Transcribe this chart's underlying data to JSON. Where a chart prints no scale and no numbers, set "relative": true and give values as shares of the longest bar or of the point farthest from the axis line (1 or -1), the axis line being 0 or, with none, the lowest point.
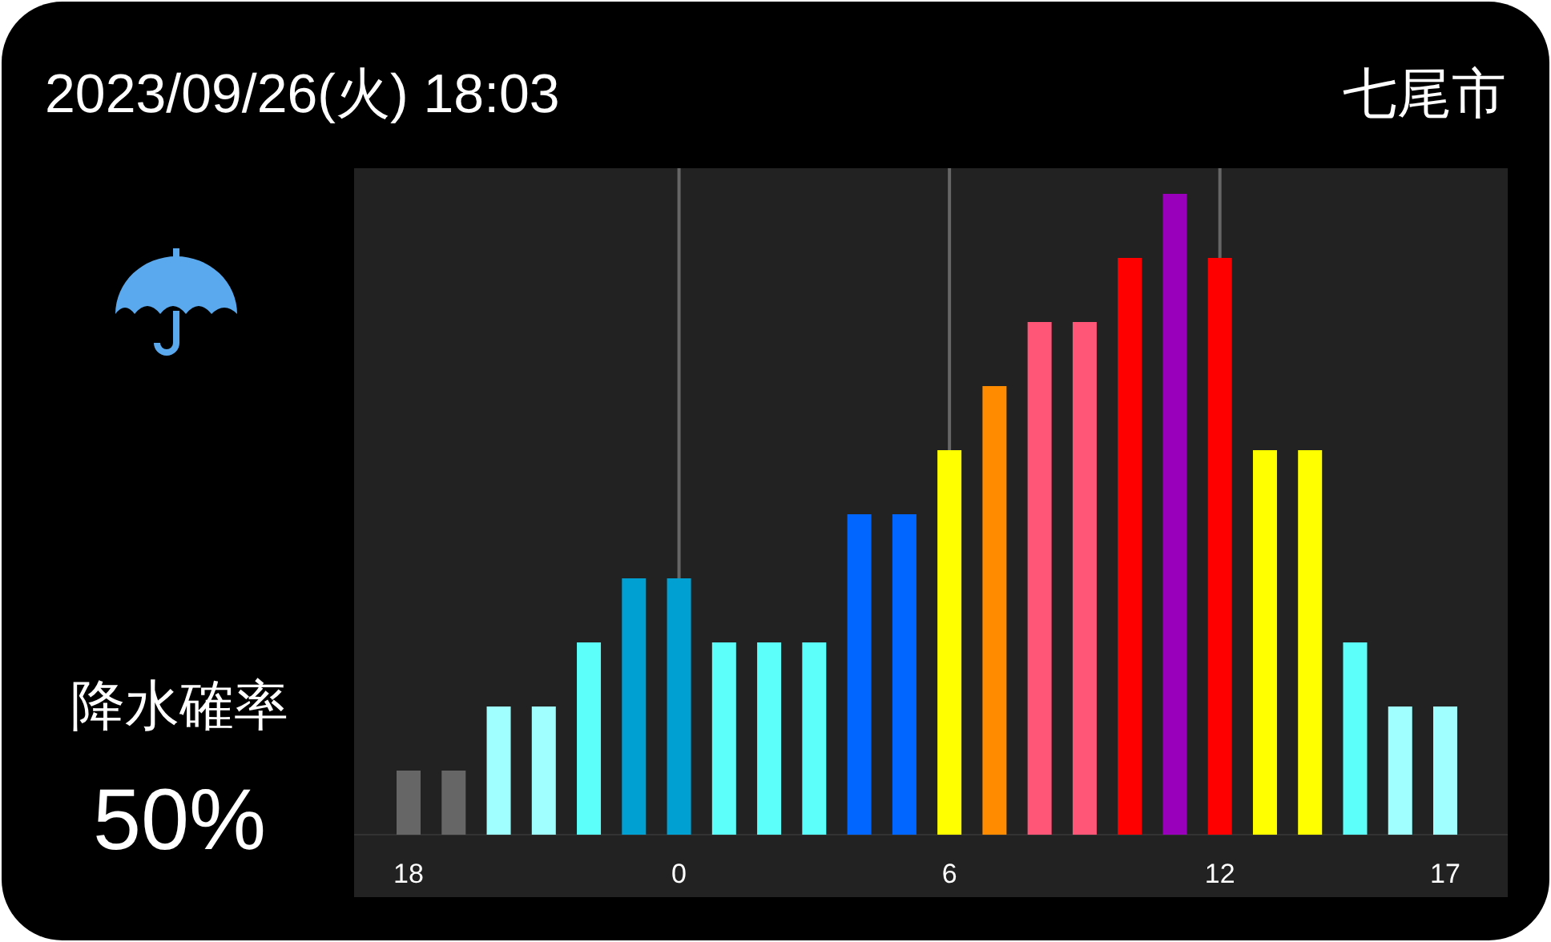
{
  "chart_data": {
    "type": "bar",
    "title": "2023/09/26(火)  18:03",
    "subtitle": "七尾市",
    "annotations": [
      "降水確率",
      "50%"
    ],
    "relative": true,
    "categories": [
      "18",
      null,
      null,
      null,
      null,
      null,
      "0",
      null,
      null,
      null,
      null,
      null,
      "6",
      null,
      null,
      null,
      null,
      null,
      "12",
      null,
      null,
      null,
      null,
      "17"
    ],
    "values": [
      0.1,
      0.1,
      0.2,
      0.2,
      0.3,
      0.4,
      0.4,
      0.3,
      0.3,
      0.3,
      0.5,
      0.5,
      0.6,
      0.7,
      0.8,
      0.8,
      0.9,
      1,
      0.9,
      0.6,
      0.6,
      0.3,
      0.2,
      0.2
    ],
    "colors": [
      "#666666",
      "#666666",
      "#a0ffff",
      "#a0ffff",
      "#5cfffa",
      "#00a0d2",
      "#00a0d2",
      "#5cfffa",
      "#5cfffa",
      "#5cfffa",
      "#0066ff",
      "#0066ff",
      "#ffff00",
      "#ff8c00",
      "#ff5577",
      "#ff5577",
      "#ff0000",
      "#9900bb",
      "#ff0000",
      "#ffff00",
      "#ffff00",
      "#5cfffa",
      "#a0ffff",
      "#a0ffff"
    ],
    "ref_lines": [
      {
        "axis": "x",
        "value": "0",
        "color": "#666666"
      },
      {
        "axis": "x",
        "value": "6",
        "color": "#666666"
      },
      {
        "axis": "x",
        "value": "12",
        "color": "#666666"
      }
    ]
  }
}
